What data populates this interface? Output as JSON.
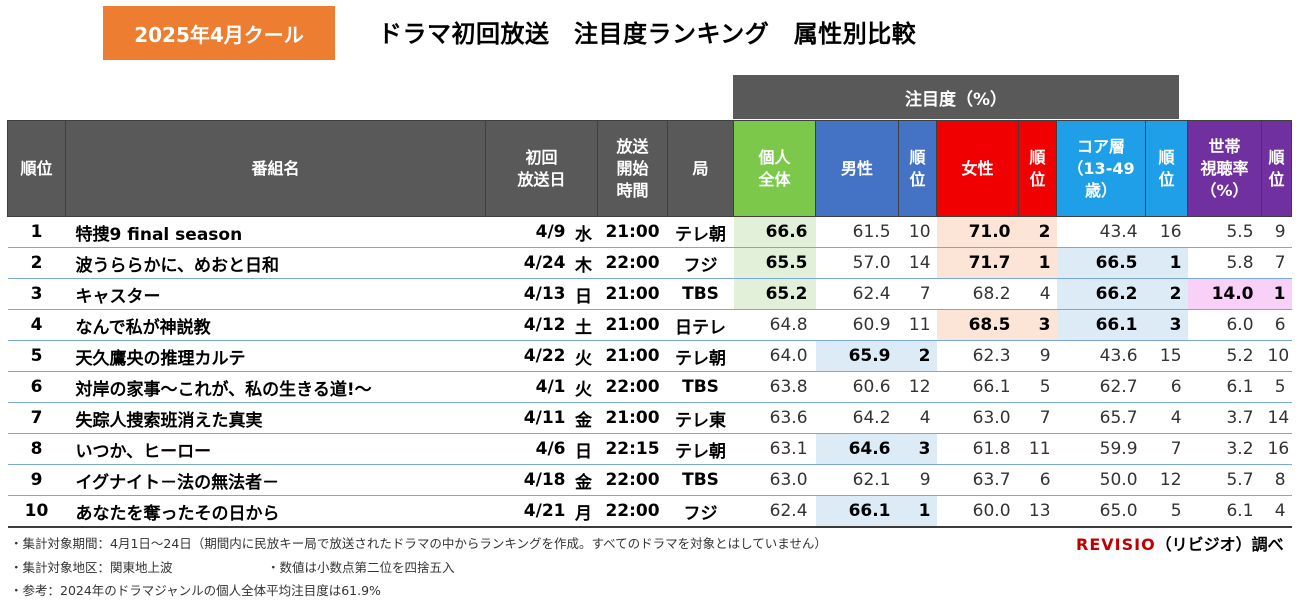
{
  "badge": "2025年4月クール",
  "title": "ドラマ初回放送　注目度ランキング　属性別比較",
  "group_header": "注目度（%）",
  "headers": {
    "rank": "順位",
    "name": "番組名",
    "date_l1": "初回",
    "date_l2": "放送日",
    "time_l1": "放送",
    "time_l2": "開始",
    "time_l3": "時間",
    "station": "局",
    "all_l1": "個人",
    "all_l2": "全体",
    "male": "男性",
    "rank_l1": "順",
    "rank_l2": "位",
    "female": "女性",
    "core_l1": "コア層",
    "core_l2": "（13-49",
    "core_l3": "歳）",
    "hh_l1": "世帯",
    "hh_l2": "視聴率",
    "hh_l3": "（%）"
  },
  "rows": [
    {
      "rank": "1",
      "name": "特捜9 final season",
      "date": "4/9",
      "dow": "水",
      "time": "21:00",
      "station": "テレ朝",
      "all": "66.6",
      "male": "61.5",
      "male_rank": "10",
      "female": "71.0",
      "female_rank": "2",
      "core": "43.4",
      "core_rank": "16",
      "hh": "5.5",
      "hh_rank": "9"
    },
    {
      "rank": "2",
      "name": "波うららかに、めおと日和",
      "date": "4/24",
      "dow": "木",
      "time": "22:00",
      "station": "フジ",
      "all": "65.5",
      "male": "57.0",
      "male_rank": "14",
      "female": "71.7",
      "female_rank": "1",
      "core": "66.5",
      "core_rank": "1",
      "hh": "5.8",
      "hh_rank": "7"
    },
    {
      "rank": "3",
      "name": "キャスター",
      "date": "4/13",
      "dow": "日",
      "time": "21:00",
      "station": "TBS",
      "all": "65.2",
      "male": "62.4",
      "male_rank": "7",
      "female": "68.2",
      "female_rank": "4",
      "core": "66.2",
      "core_rank": "2",
      "hh": "14.0",
      "hh_rank": "1"
    },
    {
      "rank": "4",
      "name": "なんで私が神説教",
      "date": "4/12",
      "dow": "土",
      "time": "21:00",
      "station": "日テレ",
      "all": "64.8",
      "male": "60.9",
      "male_rank": "11",
      "female": "68.5",
      "female_rank": "3",
      "core": "66.1",
      "core_rank": "3",
      "hh": "6.0",
      "hh_rank": "6"
    },
    {
      "rank": "5",
      "name": "天久鷹央の推理カルテ",
      "date": "4/22",
      "dow": "火",
      "time": "21:00",
      "station": "テレ朝",
      "all": "64.0",
      "male": "65.9",
      "male_rank": "2",
      "female": "62.3",
      "female_rank": "9",
      "core": "43.6",
      "core_rank": "15",
      "hh": "5.2",
      "hh_rank": "10"
    },
    {
      "rank": "6",
      "name": "対岸の家事～これが、私の生きる道!～",
      "date": "4/1",
      "dow": "火",
      "time": "22:00",
      "station": "TBS",
      "all": "63.8",
      "male": "60.6",
      "male_rank": "12",
      "female": "66.1",
      "female_rank": "5",
      "core": "62.7",
      "core_rank": "6",
      "hh": "6.1",
      "hh_rank": "5"
    },
    {
      "rank": "7",
      "name": "失踪人捜索班消えた真実",
      "date": "4/11",
      "dow": "金",
      "time": "21:00",
      "station": "テレ東",
      "all": "63.6",
      "male": "64.2",
      "male_rank": "4",
      "female": "63.0",
      "female_rank": "7",
      "core": "65.7",
      "core_rank": "4",
      "hh": "3.7",
      "hh_rank": "14"
    },
    {
      "rank": "8",
      "name": "いつか、ヒーロー",
      "date": "4/6",
      "dow": "日",
      "time": "22:15",
      "station": "テレ朝",
      "all": "63.1",
      "male": "64.6",
      "male_rank": "3",
      "female": "61.8",
      "female_rank": "11",
      "core": "59.9",
      "core_rank": "7",
      "hh": "3.2",
      "hh_rank": "16"
    },
    {
      "rank": "9",
      "name": "イグナイト－法の無法者－",
      "date": "4/18",
      "dow": "金",
      "time": "22:00",
      "station": "TBS",
      "all": "63.0",
      "male": "62.1",
      "male_rank": "9",
      "female": "63.7",
      "female_rank": "6",
      "core": "50.0",
      "core_rank": "12",
      "hh": "5.7",
      "hh_rank": "8"
    },
    {
      "rank": "10",
      "name": "あなたを奪ったその日から",
      "date": "4/21",
      "dow": "月",
      "time": "22:00",
      "station": "フジ",
      "all": "62.4",
      "male": "66.1",
      "male_rank": "1",
      "female": "60.0",
      "female_rank": "13",
      "core": "65.0",
      "core_rank": "5",
      "hh": "6.1",
      "hh_rank": "4"
    }
  ],
  "footnotes": {
    "period": "・集計対象期間：4月1日～24日（期間内に民放キー局で放送されたドラマの中からランキングを作成。すべてのドラマを対象とはしていません）",
    "area": "・集計対象地区：関東地上波",
    "rounding": "・数値は小数点第二位を四捨五入",
    "reference": "・参考：2024年のドラマジャンルの個人全体平均注目度は61.9%"
  },
  "brand": {
    "name": "REVISIO",
    "suffix": "（リビジオ）調べ"
  },
  "colors": {
    "badge": "#ED7D31",
    "header_gray": "#595959",
    "all": "#7BC84B",
    "male": "#4472C4",
    "female": "#F00000",
    "core": "#1E9FE8",
    "household": "#7030A0"
  }
}
